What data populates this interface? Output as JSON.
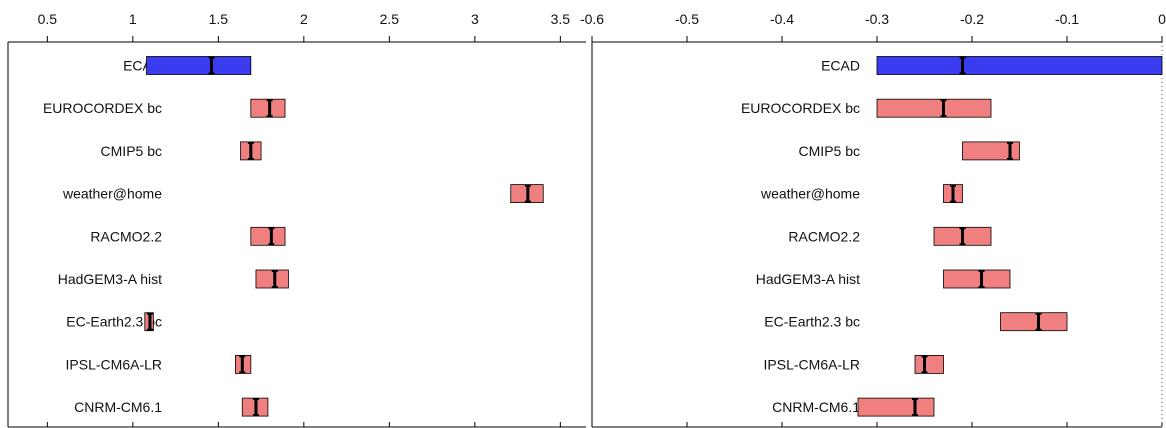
{
  "chart_data": [
    {
      "type": "bar",
      "title": "",
      "xlabel": "",
      "ylabel": "",
      "xlim": [
        0.27,
        3.65
      ],
      "xticks": [
        0.5,
        1,
        1.5,
        2,
        2.5,
        3,
        3.5
      ],
      "xtick_labels": [
        "0.5",
        "1",
        "1.5",
        "2",
        "2.5",
        "3",
        "3.5"
      ],
      "grid": false,
      "reference_line": null,
      "bars": [
        {
          "label": "ECAD",
          "low": 1.08,
          "high": 1.69,
          "best": 1.46,
          "err_low": 1.43,
          "err_high": 1.49,
          "color": "#3b3bf0"
        },
        {
          "label": "EUROCORDEX bc",
          "low": 1.69,
          "high": 1.89,
          "best": 1.8,
          "err_low": 1.77,
          "err_high": 1.83,
          "color": "#f08080"
        },
        {
          "label": "CMIP5 bc",
          "low": 1.63,
          "high": 1.75,
          "best": 1.69,
          "err_low": 1.67,
          "err_high": 1.71,
          "color": "#f08080"
        },
        {
          "label": "weather@home",
          "low": 3.21,
          "high": 3.4,
          "best": 3.31,
          "err_low": 3.28,
          "err_high": 3.34,
          "color": "#f08080"
        },
        {
          "label": "RACMO2.2",
          "low": 1.69,
          "high": 1.89,
          "best": 1.81,
          "err_low": 1.78,
          "err_high": 1.84,
          "color": "#f08080"
        },
        {
          "label": "HadGEM3-A hist",
          "low": 1.72,
          "high": 1.91,
          "best": 1.83,
          "err_low": 1.8,
          "err_high": 1.86,
          "color": "#f08080"
        },
        {
          "label": "EC-Earth2.3 bc",
          "low": 1.07,
          "high": 1.12,
          "best": 1.1,
          "err_low": 1.08,
          "err_high": 1.11,
          "color": "#f08080"
        },
        {
          "label": "IPSL-CM6A-LR",
          "low": 1.6,
          "high": 1.69,
          "best": 1.64,
          "err_low": 1.62,
          "err_high": 1.66,
          "color": "#f08080"
        },
        {
          "label": "CNRM-CM6.1",
          "low": 1.64,
          "high": 1.79,
          "best": 1.72,
          "err_low": 1.69,
          "err_high": 1.75,
          "color": "#f08080"
        }
      ]
    },
    {
      "type": "bar",
      "title": "",
      "xlabel": "",
      "ylabel": "",
      "xlim": [
        -0.6,
        0.0
      ],
      "xticks": [
        -0.6,
        -0.5,
        -0.4,
        -0.3,
        -0.2,
        -0.1,
        0
      ],
      "xtick_labels": [
        "-0.6",
        "-0.5",
        "-0.4",
        "-0.3",
        "-0.2",
        "-0.1",
        "0"
      ],
      "grid": false,
      "reference_line": 0,
      "bars": [
        {
          "label": "ECAD",
          "low": -0.3,
          "high": 0.0,
          "best": -0.21,
          "err_low": -0.213,
          "err_high": -0.207,
          "color": "#3b3bf0"
        },
        {
          "label": "EUROCORDEX bc",
          "low": -0.3,
          "high": -0.18,
          "best": -0.23,
          "err_low": -0.235,
          "err_high": -0.225,
          "color": "#f08080"
        },
        {
          "label": "CMIP5 bc",
          "low": -0.21,
          "high": -0.15,
          "best": -0.16,
          "err_low": -0.165,
          "err_high": -0.155,
          "color": "#f08080"
        },
        {
          "label": "weather@home",
          "low": -0.23,
          "high": -0.21,
          "best": -0.22,
          "err_low": -0.225,
          "err_high": -0.215,
          "color": "#f08080"
        },
        {
          "label": "RACMO2.2",
          "low": -0.24,
          "high": -0.18,
          "best": -0.21,
          "err_low": -0.215,
          "err_high": -0.205,
          "color": "#f08080"
        },
        {
          "label": "HadGEM3-A hist",
          "low": -0.23,
          "high": -0.16,
          "best": -0.19,
          "err_low": -0.195,
          "err_high": -0.185,
          "color": "#f08080"
        },
        {
          "label": "EC-Earth2.3 bc",
          "low": -0.17,
          "high": -0.1,
          "best": -0.13,
          "err_low": -0.135,
          "err_high": -0.125,
          "color": "#f08080"
        },
        {
          "label": "IPSL-CM6A-LR",
          "low": -0.26,
          "high": -0.23,
          "best": -0.25,
          "err_low": -0.255,
          "err_high": -0.245,
          "color": "#f08080"
        },
        {
          "label": "CNRM-CM6.1",
          "low": -0.32,
          "high": -0.24,
          "best": -0.26,
          "err_low": -0.265,
          "err_high": -0.255,
          "color": "#f08080"
        }
      ]
    }
  ]
}
